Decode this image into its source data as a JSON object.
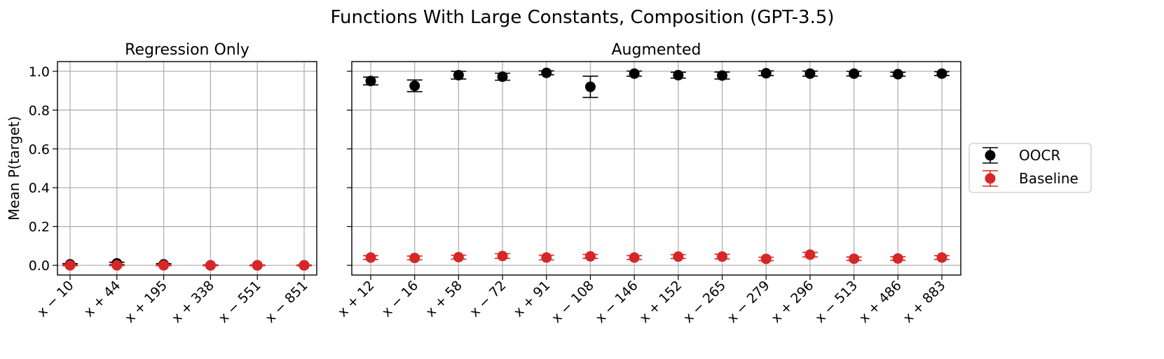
{
  "title": "Functions With Large Constants, Composition (GPT-3.5)",
  "chart_data": [
    {
      "type": "scatter",
      "title": "Regression Only",
      "ylabel": "Mean P(target)",
      "ylim": [
        -0.05,
        1.05
      ],
      "yticks": [
        "0.0",
        "0.2",
        "0.4",
        "0.6",
        "0.8",
        "1.0"
      ],
      "grid": true,
      "categories": [
        "x − 10",
        "x + 44",
        "x + 195",
        "x + 338",
        "x − 551",
        "x − 851"
      ],
      "series": [
        {
          "name": "OOCR",
          "color": "#000000",
          "values": [
            0.005,
            0.01,
            0.005,
            0.0,
            0.0,
            0.0
          ],
          "errors": [
            0.004,
            0.006,
            0.004,
            0.002,
            0.001,
            0.001
          ]
        },
        {
          "name": "Baseline",
          "color": "#d62728",
          "values": [
            0.0,
            0.0,
            0.0,
            0.0,
            0.0,
            0.0
          ],
          "errors": [
            0.002,
            0.002,
            0.002,
            0.002,
            0.002,
            0.002
          ]
        }
      ]
    },
    {
      "type": "scatter",
      "title": "Augmented",
      "ylim": [
        -0.05,
        1.05
      ],
      "grid": true,
      "categories": [
        "x + 12",
        "x − 16",
        "x + 58",
        "x − 72",
        "x + 91",
        "x − 108",
        "x − 146",
        "x + 152",
        "x − 265",
        "x − 279",
        "x + 296",
        "x − 513",
        "x + 486",
        "x + 883"
      ],
      "legend": "outside-right",
      "series": [
        {
          "name": "OOCR",
          "color": "#000000",
          "values": [
            0.95,
            0.925,
            0.98,
            0.972,
            0.992,
            0.92,
            0.988,
            0.98,
            0.978,
            0.99,
            0.988,
            0.988,
            0.985,
            0.988
          ],
          "errors": [
            0.02,
            0.03,
            0.02,
            0.018,
            0.01,
            0.055,
            0.013,
            0.015,
            0.018,
            0.012,
            0.013,
            0.012,
            0.01,
            0.01
          ]
        },
        {
          "name": "Baseline",
          "color": "#d62728",
          "values": [
            0.04,
            0.038,
            0.042,
            0.048,
            0.04,
            0.046,
            0.04,
            0.045,
            0.045,
            0.033,
            0.055,
            0.034,
            0.035,
            0.04
          ],
          "errors": [
            0.01,
            0.01,
            0.01,
            0.012,
            0.012,
            0.01,
            0.01,
            0.01,
            0.012,
            0.009,
            0.012,
            0.009,
            0.009,
            0.01
          ]
        }
      ]
    }
  ]
}
